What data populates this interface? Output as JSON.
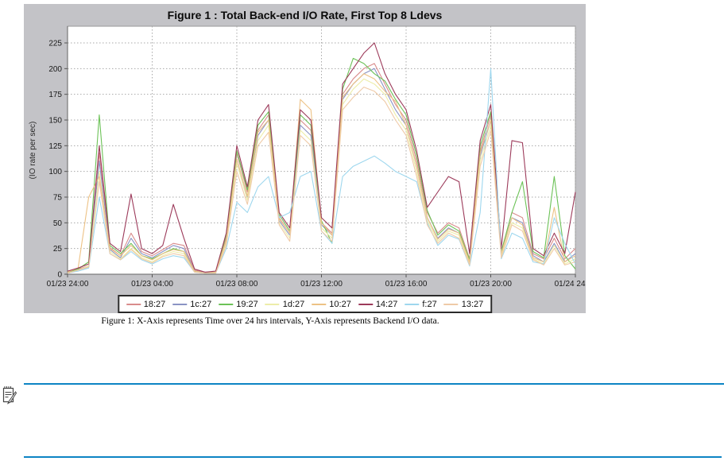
{
  "chart_data": {
    "type": "line",
    "title": "Figure 1 : Total Back-end I/O Rate, First Top 8 Ldevs",
    "xlabel": "",
    "ylabel": "(IO rate per sec)",
    "ylim": [
      0,
      225
    ],
    "y_ticks": [
      0,
      25,
      50,
      75,
      100,
      125,
      150,
      175,
      200,
      225
    ],
    "x_range_hours": [
      0,
      24
    ],
    "x_step_hours": 0.5,
    "x_tick_hours": [
      0,
      4,
      8,
      12,
      16,
      20,
      24
    ],
    "x_tick_labels": [
      "01/23 24:00",
      "01/23 04:00",
      "01/23 08:00",
      "01/23 12:00",
      "01/23 16:00",
      "01/23 20:00",
      "01/24 24:00"
    ],
    "grid": "dotted",
    "legend_position": "bottom",
    "series": [
      {
        "name": "18:27",
        "color": "#d98c8c",
        "values": [
          2,
          5,
          8,
          118,
          26,
          18,
          40,
          22,
          18,
          24,
          30,
          28,
          4,
          2,
          2,
          35,
          118,
          80,
          140,
          155,
          55,
          40,
          150,
          140,
          50,
          40,
          175,
          190,
          200,
          205,
          185,
          165,
          150,
          110,
          60,
          40,
          50,
          45,
          15,
          120,
          155,
          22,
          60,
          55,
          20,
          15,
          35,
          15,
          25
        ]
      },
      {
        "name": "1c:27",
        "color": "#8a93c4",
        "values": [
          2,
          4,
          7,
          110,
          24,
          16,
          35,
          20,
          16,
          22,
          28,
          25,
          3,
          1,
          2,
          32,
          112,
          75,
          135,
          150,
          52,
          38,
          145,
          135,
          48,
          38,
          170,
          185,
          195,
          200,
          180,
          160,
          145,
          105,
          55,
          35,
          45,
          40,
          12,
          115,
          150,
          20,
          55,
          50,
          18,
          12,
          30,
          12,
          20
        ]
      },
      {
        "name": "19:27",
        "color": "#6cc257",
        "values": [
          2,
          5,
          12,
          155,
          28,
          20,
          30,
          18,
          15,
          20,
          25,
          22,
          3,
          1,
          2,
          38,
          120,
          82,
          145,
          158,
          58,
          42,
          155,
          145,
          52,
          30,
          180,
          210,
          205,
          195,
          188,
          170,
          155,
          115,
          62,
          38,
          48,
          42,
          14,
          125,
          158,
          22,
          60,
          90,
          22,
          16,
          95,
          18,
          5
        ]
      },
      {
        "name": "1d:27",
        "color": "#ededa9",
        "values": [
          1,
          4,
          8,
          100,
          22,
          15,
          25,
          16,
          12,
          18,
          22,
          20,
          2,
          1,
          1,
          30,
          108,
          72,
          130,
          145,
          50,
          35,
          140,
          130,
          45,
          35,
          165,
          180,
          190,
          185,
          175,
          155,
          140,
          100,
          52,
          32,
          42,
          38,
          10,
          110,
          145,
          18,
          50,
          45,
          15,
          10,
          28,
          10,
          15
        ]
      },
      {
        "name": "10:27",
        "color": "#edc285",
        "values": [
          2,
          6,
          75,
          95,
          25,
          18,
          28,
          18,
          14,
          20,
          24,
          22,
          3,
          1,
          2,
          33,
          112,
          76,
          138,
          150,
          54,
          40,
          170,
          160,
          50,
          38,
          172,
          185,
          195,
          190,
          178,
          168,
          145,
          105,
          55,
          34,
          44,
          40,
          12,
          118,
          150,
          20,
          55,
          48,
          16,
          12,
          65,
          12,
          18
        ]
      },
      {
        "name": "14:27",
        "color": "#9c3a5a",
        "values": [
          3,
          6,
          10,
          125,
          30,
          22,
          78,
          25,
          20,
          28,
          68,
          35,
          5,
          2,
          3,
          40,
          125,
          85,
          150,
          165,
          60,
          45,
          160,
          150,
          55,
          45,
          185,
          200,
          215,
          225,
          195,
          175,
          160,
          120,
          65,
          80,
          95,
          90,
          20,
          130,
          165,
          25,
          130,
          128,
          25,
          18,
          40,
          20,
          80
        ]
      },
      {
        "name": "f:27",
        "color": "#9ed7ee",
        "values": [
          1,
          3,
          6,
          75,
          20,
          14,
          22,
          14,
          10,
          15,
          18,
          16,
          2,
          1,
          1,
          25,
          70,
          60,
          85,
          95,
          55,
          60,
          95,
          100,
          42,
          30,
          95,
          105,
          110,
          115,
          108,
          100,
          95,
          90,
          50,
          28,
          38,
          34,
          8,
          60,
          200,
          15,
          40,
          35,
          12,
          10,
          55,
          30,
          10
        ]
      },
      {
        "name": "13:27",
        "color": "#efcaa7",
        "values": [
          1,
          4,
          7,
          90,
          20,
          14,
          24,
          15,
          11,
          17,
          20,
          18,
          2,
          1,
          1,
          28,
          100,
          68,
          125,
          138,
          48,
          32,
          135,
          125,
          42,
          32,
          160,
          172,
          182,
          178,
          168,
          150,
          135,
          95,
          48,
          30,
          40,
          35,
          9,
          105,
          140,
          16,
          48,
          42,
          14,
          9,
          25,
          9,
          12
        ]
      }
    ]
  },
  "caption": "Figure 1: X-Axis represents Time over 24 hrs intervals, Y-Axis represents Backend I/O data.",
  "note": {
    "icon": "notepad-pencil-icon",
    "rule_color": "#0d84c4"
  },
  "style": {
    "panel_bg": "#c3c3c7",
    "plot_bg": "#ffffff",
    "grid_color": "#a8a8a8"
  }
}
